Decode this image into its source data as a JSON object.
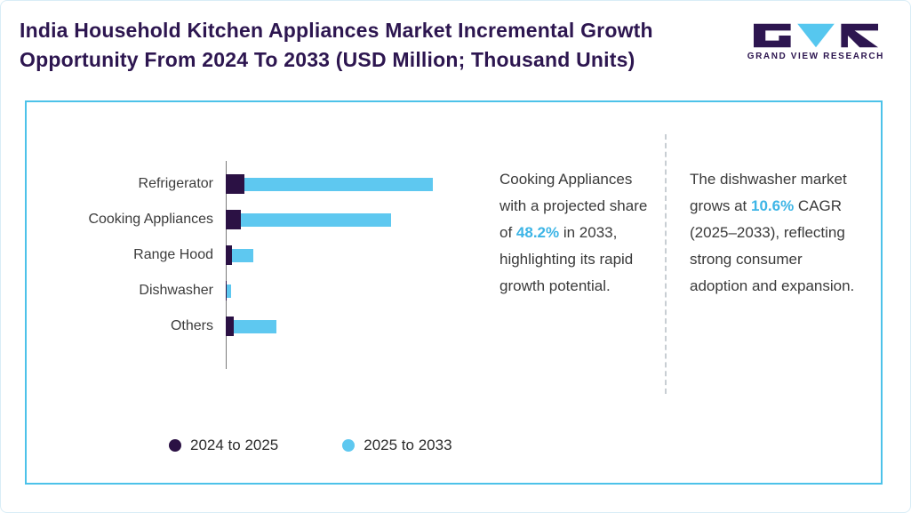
{
  "header": {
    "title_line1": "India Household Kitchen Appliances Market Incremental Growth",
    "title_line2": "Opportunity From 2024 To 2033 (USD Million; Thousand Units)",
    "logo_text": "GRAND VIEW RESEARCH"
  },
  "chart_data": {
    "type": "bar",
    "orientation": "horizontal",
    "title": "",
    "xlabel": "",
    "ylabel": "",
    "categories": [
      "Refrigerator",
      "Cooking Appliances",
      "Range Hood",
      "Dishwasher",
      "Others"
    ],
    "series": [
      {
        "name": "2024 to 2025",
        "color": "#2b1144",
        "values": [
          21,
          17,
          7,
          1,
          9
        ]
      },
      {
        "name": "2025 to 2033",
        "color": "#5ec8f0",
        "values": [
          212,
          169,
          24,
          5,
          48
        ]
      }
    ],
    "stacked": true,
    "value_axis_visible": false,
    "grid": false,
    "legend_position": "bottom",
    "note": "No numeric axis shown in source; values are estimated relative bar lengths"
  },
  "annotations": {
    "insight1": {
      "before": "Cooking Appliances with a projected share of ",
      "highlight": "48.2%",
      "after": " in 2033, highlighting its rapid growth potential."
    },
    "insight2": {
      "before": "The dishwasher market grows at ",
      "highlight": "10.6%",
      "after": " CAGR (2025–2033), reflecting strong consumer adoption and expansion."
    }
  },
  "colors": {
    "accent_blue": "#3db5e6",
    "title_purple": "#2d1650",
    "panel_border": "#4cc2e9"
  }
}
